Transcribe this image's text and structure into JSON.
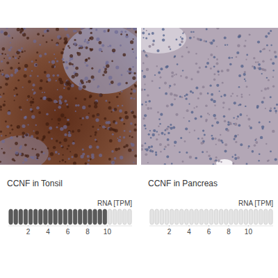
{
  "chart_data": [
    {
      "type": "bar",
      "orientation": "horizontal",
      "title": "CCNF in Tonsil",
      "xlabel": "RNA [TPM]",
      "categories": [
        null
      ],
      "values": [
        10
      ],
      "color": "#5a5a5a",
      "xlim": [
        0,
        12.5
      ],
      "xticks": [
        2,
        4,
        6,
        8,
        10
      ],
      "tick_labels": "x"
    },
    {
      "type": "bar",
      "orientation": "horizontal",
      "title": "CCNF in Pancreas",
      "xlabel": "RNA [TPM]",
      "categories": [
        null
      ],
      "values": [
        0
      ],
      "color": "#5a5a5a",
      "xlim": [
        0,
        12.5
      ],
      "xticks": [
        2,
        4,
        6,
        8,
        10
      ],
      "tick_labels": "x"
    }
  ]
}
